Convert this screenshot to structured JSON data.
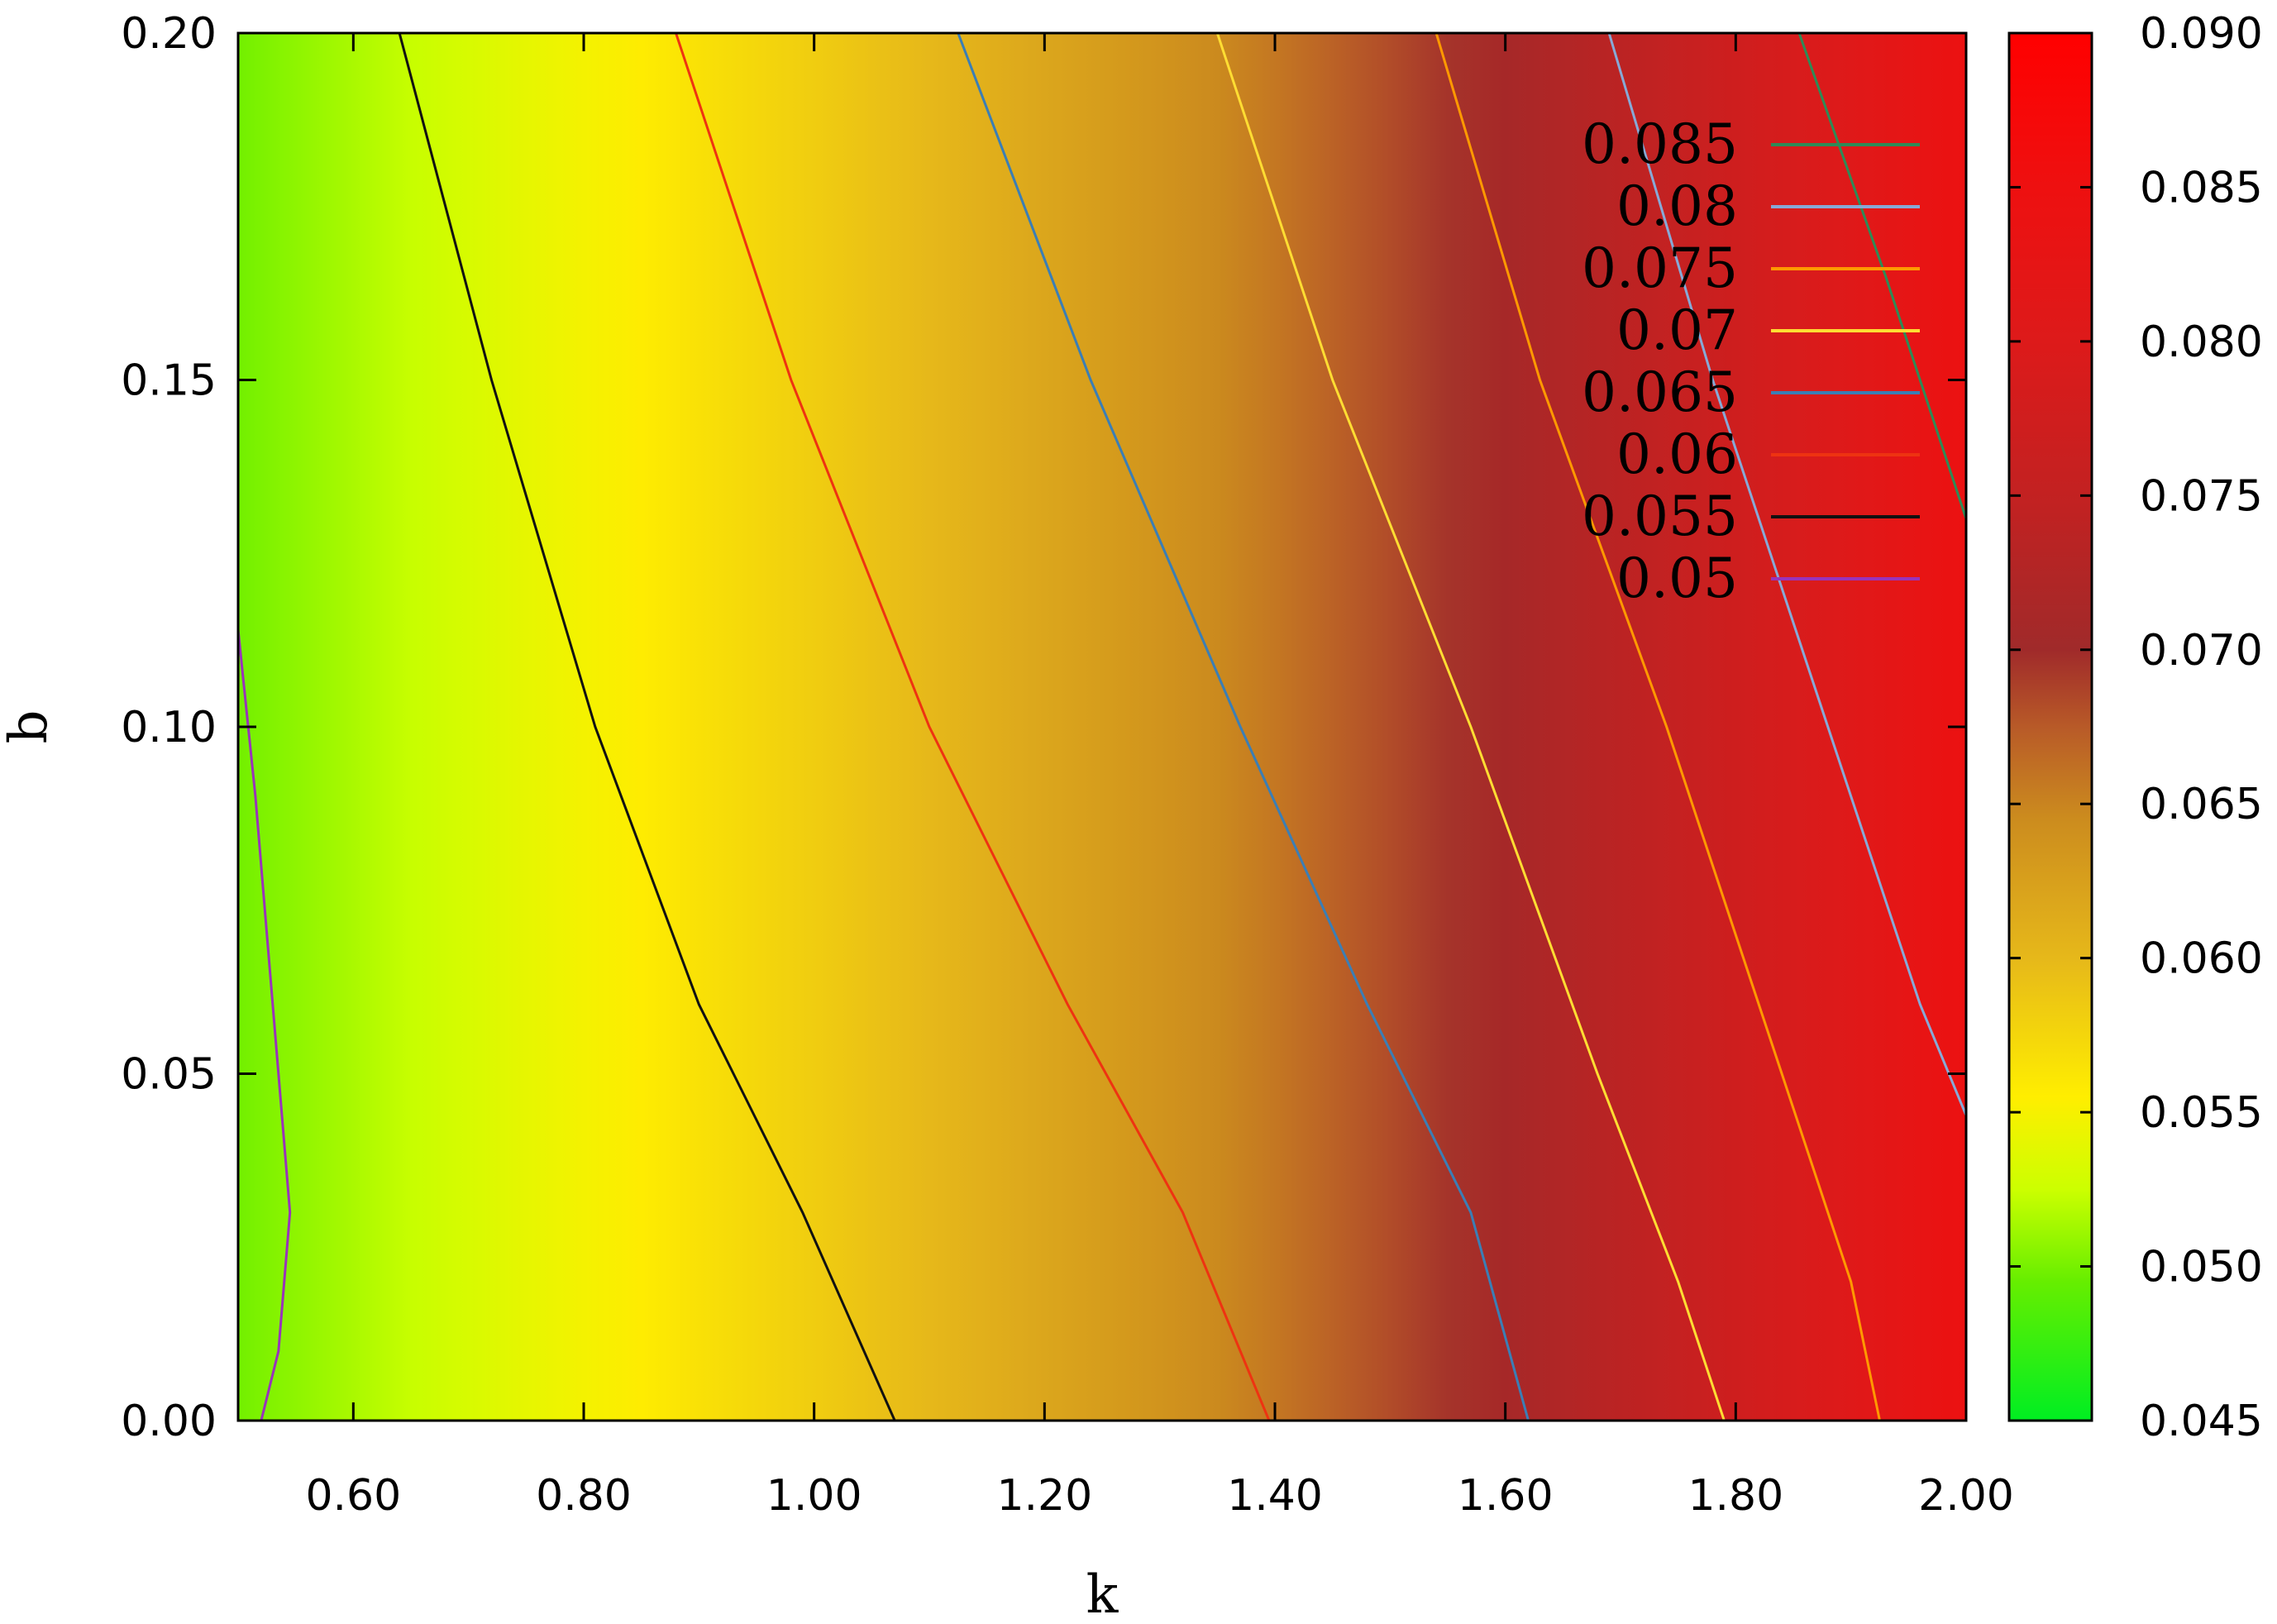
{
  "chart_data": {
    "type": "heatmap",
    "title": "",
    "xlabel": "k",
    "ylabel": "b",
    "xlim": [
      0.5,
      2.0
    ],
    "ylim": [
      0.0,
      0.2
    ],
    "x_ticks": [
      0.6,
      0.8,
      1.0,
      1.2,
      1.4,
      1.6,
      1.8,
      2.0
    ],
    "x_tick_labels": [
      "0.60",
      "0.80",
      "1.00",
      "1.20",
      "1.40",
      "1.60",
      "1.80",
      "2.00"
    ],
    "y_ticks": [
      0.0,
      0.05,
      0.1,
      0.15,
      0.2
    ],
    "y_tick_labels": [
      "0.00",
      "0.05",
      "0.10",
      "0.15",
      "0.20"
    ],
    "colorbar": {
      "range": [
        0.045,
        0.09
      ],
      "ticks": [
        0.045,
        0.05,
        0.055,
        0.06,
        0.065,
        0.07,
        0.075,
        0.08,
        0.085,
        0.09
      ],
      "tick_labels": [
        "0.045",
        "0.050",
        "0.055",
        "0.060",
        "0.065",
        "0.070",
        "0.075",
        "0.080",
        "0.085",
        "0.090"
      ],
      "stops": [
        {
          "value": 0.045,
          "color": "#00ee22"
        },
        {
          "value": 0.0495,
          "color": "#66ee00"
        },
        {
          "value": 0.0525,
          "color": "#ccff00"
        },
        {
          "value": 0.0555,
          "color": "#ffee00"
        },
        {
          "value": 0.06,
          "color": "#e6b81a"
        },
        {
          "value": 0.0645,
          "color": "#cc8c1e"
        },
        {
          "value": 0.0675,
          "color": "#b85a28"
        },
        {
          "value": 0.07,
          "color": "#a02a2a"
        },
        {
          "value": 0.0745,
          "color": "#c02222"
        },
        {
          "value": 0.08,
          "color": "#dd1a1a"
        },
        {
          "value": 0.085,
          "color": "#ee1010"
        },
        {
          "value": 0.09,
          "color": "#ff0000"
        }
      ]
    },
    "contours": [
      {
        "name": "0.085",
        "color": "#2e8b57",
        "points": [
          [
            1.855,
            0.2
          ],
          [
            1.93,
            0.165
          ],
          [
            2.0,
            0.13
          ]
        ]
      },
      {
        "name": "0.08",
        "color": "#87a9d6",
        "points": [
          [
            1.69,
            0.2
          ],
          [
            1.78,
            0.15
          ],
          [
            1.88,
            0.1
          ],
          [
            1.96,
            0.06
          ],
          [
            2.0,
            0.044
          ]
        ]
      },
      {
        "name": "0.075",
        "color": "#ff9900",
        "points": [
          [
            1.54,
            0.2
          ],
          [
            1.63,
            0.15
          ],
          [
            1.74,
            0.1
          ],
          [
            1.84,
            0.05
          ],
          [
            1.9,
            0.02
          ],
          [
            1.925,
            0.0
          ]
        ]
      },
      {
        "name": "0.07",
        "color": "#ffdd33",
        "points": [
          [
            1.35,
            0.2
          ],
          [
            1.45,
            0.15
          ],
          [
            1.57,
            0.1
          ],
          [
            1.68,
            0.05
          ],
          [
            1.75,
            0.02
          ],
          [
            1.79,
            0.0
          ]
        ]
      },
      {
        "name": "0.065",
        "color": "#3b7eb5",
        "points": [
          [
            1.125,
            0.2
          ],
          [
            1.24,
            0.15
          ],
          [
            1.37,
            0.1
          ],
          [
            1.48,
            0.06
          ],
          [
            1.57,
            0.03
          ],
          [
            1.62,
            0.0
          ]
        ]
      },
      {
        "name": "0.06",
        "color": "#ee3311",
        "points": [
          [
            0.88,
            0.2
          ],
          [
            0.98,
            0.15
          ],
          [
            1.1,
            0.1
          ],
          [
            1.22,
            0.06
          ],
          [
            1.32,
            0.03
          ],
          [
            1.395,
            0.0
          ]
        ]
      },
      {
        "name": "0.055",
        "color": "#111111",
        "points": [
          [
            0.64,
            0.2
          ],
          [
            0.72,
            0.15
          ],
          [
            0.81,
            0.1
          ],
          [
            0.9,
            0.06
          ],
          [
            0.99,
            0.03
          ],
          [
            1.07,
            0.0
          ]
        ]
      },
      {
        "name": "0.05",
        "color": "#9933bb",
        "points": [
          [
            0.5,
            0.114
          ],
          [
            0.515,
            0.09
          ],
          [
            0.535,
            0.05
          ],
          [
            0.545,
            0.03
          ],
          [
            0.535,
            0.01
          ],
          [
            0.52,
            0.0
          ]
        ]
      }
    ],
    "legend": {
      "placement": "top-right",
      "entries": [
        {
          "label": "0.085",
          "color": "#2e8b57"
        },
        {
          "label": "0.08",
          "color": "#87a9d6"
        },
        {
          "label": "0.075",
          "color": "#ff9900"
        },
        {
          "label": "0.07",
          "color": "#ffdd33"
        },
        {
          "label": "0.065",
          "color": "#3b7eb5"
        },
        {
          "label": "0.06",
          "color": "#ee3311"
        },
        {
          "label": "0.055",
          "color": "#111111"
        },
        {
          "label": "0.05",
          "color": "#9933bb"
        }
      ]
    }
  }
}
